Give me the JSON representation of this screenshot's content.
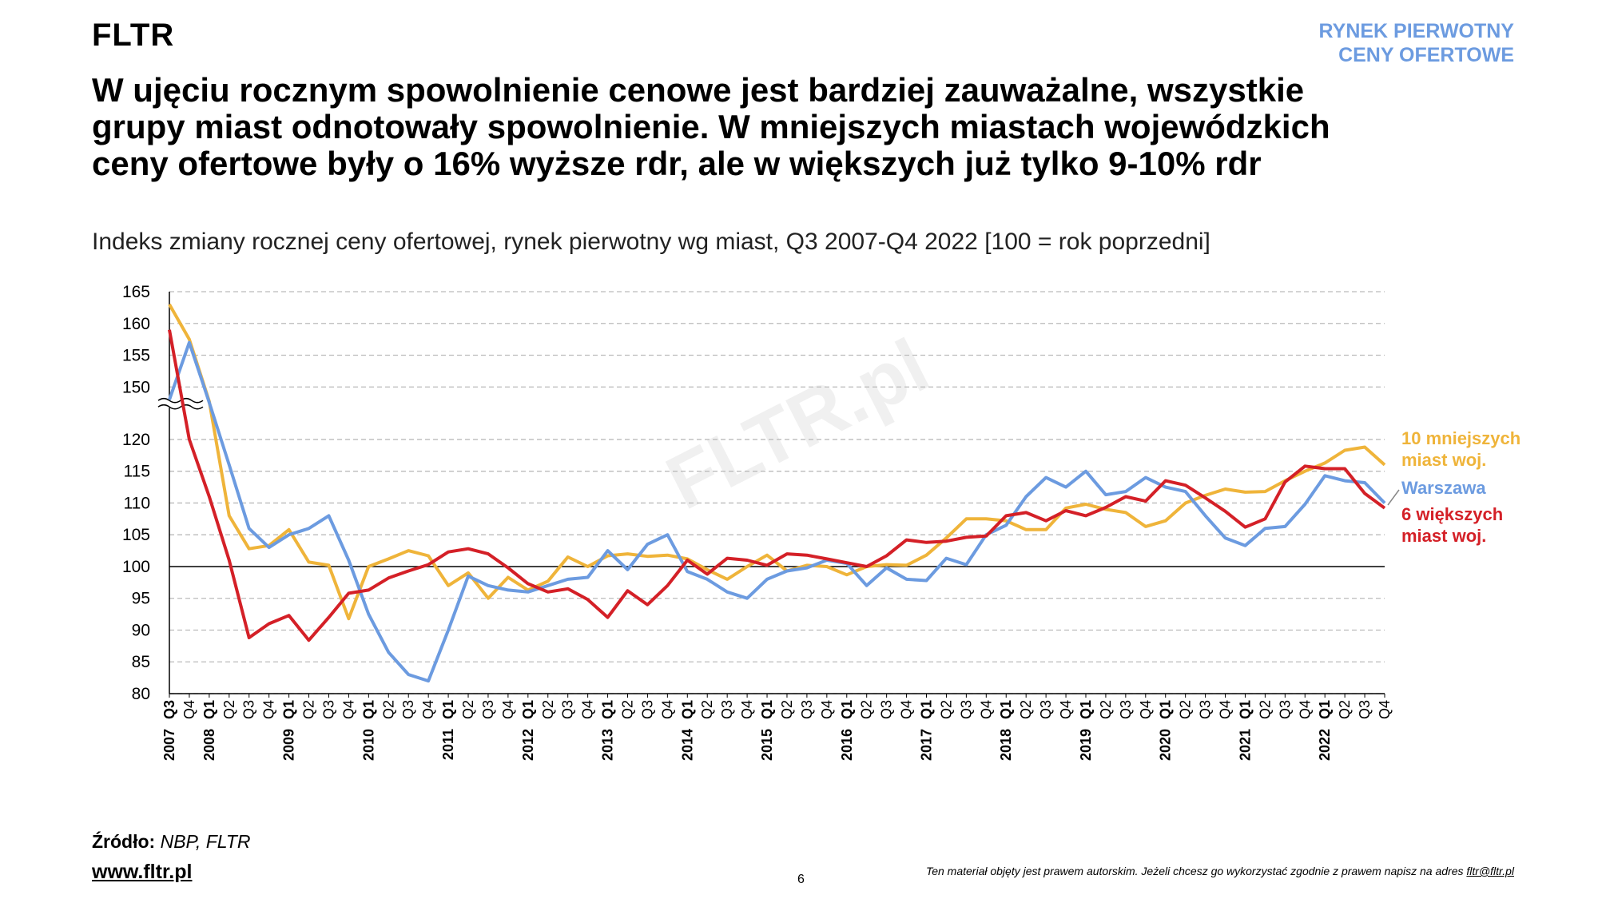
{
  "brand": "FLTR",
  "tag": "RYNEK PIERWOTNY\nCENY OFERTOWE",
  "source": {
    "label": "Źródło:",
    "text": "NBP, FLTR"
  },
  "website": "www.fltr.pl",
  "page_number": "6",
  "footer": {
    "note": "Ten materiał objęty jest prawem autorskim. Jeżeli chcesz go wykorzystać zgodnie z prawem napisz na adres ",
    "email": "fltr@fltr.pl"
  },
  "watermark": "FLTR.pl",
  "chart_data": {
    "type": "line",
    "title": "W ujęciu rocznym spowolnienie cenowe jest bardziej zauważalne, wszystkie\ngrupy miast odnotowały spowolnienie. W mniejszych miastach wojewódzkich\nceny ofertowe były o 16% wyższe rdr, ale w większych już tylko 9-10% rdr",
    "subtitle": "Indeks zmiany rocznej ceny ofertowej, rynek pierwotny wg miast, Q3 2007-Q4 2022 [100 = rok poprzedni]",
    "categories": [
      "Q3",
      "Q4",
      "Q1",
      "Q2",
      "Q3",
      "Q4",
      "Q1",
      "Q2",
      "Q3",
      "Q4",
      "Q1",
      "Q2",
      "Q3",
      "Q4",
      "Q1",
      "Q2",
      "Q3",
      "Q4",
      "Q1",
      "Q2",
      "Q3",
      "Q4",
      "Q1",
      "Q2",
      "Q3",
      "Q4",
      "Q1",
      "Q2",
      "Q3",
      "Q4",
      "Q1",
      "Q2",
      "Q3",
      "Q4",
      "Q1",
      "Q2",
      "Q3",
      "Q4",
      "Q1",
      "Q2",
      "Q3",
      "Q4",
      "Q1",
      "Q2",
      "Q3",
      "Q4",
      "Q1",
      "Q2",
      "Q3",
      "Q4",
      "Q1",
      "Q2",
      "Q3",
      "Q4",
      "Q1",
      "Q2",
      "Q3",
      "Q4",
      "Q1",
      "Q2",
      "Q3",
      "Q4"
    ],
    "years": [
      "2007",
      null,
      "2008",
      null,
      null,
      null,
      "2009",
      null,
      null,
      null,
      "2010",
      null,
      null,
      null,
      "2011",
      null,
      null,
      null,
      "2012",
      null,
      null,
      null,
      "2013",
      null,
      null,
      null,
      "2014",
      null,
      null,
      null,
      "2015",
      null,
      null,
      null,
      "2016",
      null,
      null,
      null,
      "2017",
      null,
      null,
      null,
      "2018",
      null,
      null,
      null,
      "2019",
      null,
      null,
      null,
      "2020",
      null,
      null,
      null,
      "2021",
      null,
      null,
      null,
      "2022",
      null,
      null,
      null
    ],
    "series": [
      {
        "name": "10 mniejszych\nmiast woj.",
        "color": "#efb43a",
        "values": [
          163,
          157.5,
          143,
          108,
          102.8,
          103.3,
          105.8,
          100.7,
          100.2,
          91.8,
          100,
          101.2,
          102.5,
          101.7,
          97,
          99,
          95,
          98.3,
          96.3,
          97.7,
          101.5,
          100,
          101.7,
          102,
          101.6,
          101.8,
          101.2,
          99.5,
          98,
          100,
          101.8,
          99.3,
          100.2,
          100,
          98.7,
          100,
          100.3,
          100.2,
          101.8,
          104.5,
          107.5,
          107.5,
          107.2,
          105.8,
          105.8,
          109.2,
          109.8,
          109,
          108.5,
          106.3,
          107.2,
          110,
          111.2,
          112.2,
          111.7,
          111.8,
          113.5,
          115,
          116.3,
          118.3,
          118.8,
          116
        ]
      },
      {
        "name": "Warszawa",
        "color": "#6c9be0",
        "values": [
          148,
          157,
          140,
          116,
          106,
          103,
          105,
          106,
          108,
          101,
          92.5,
          86.5,
          83,
          82,
          90,
          98.5,
          97,
          96.3,
          96,
          97,
          98,
          98.3,
          102.5,
          99.5,
          103.5,
          105,
          99.2,
          98,
          96,
          95,
          98,
          99.3,
          99.8,
          101,
          100.5,
          97,
          99.8,
          98,
          97.8,
          101.3,
          100.3,
          105,
          106.5,
          111,
          114,
          112.5,
          115,
          111.3,
          111.8,
          114,
          112.5,
          111.8,
          108,
          104.5,
          103.3,
          106,
          106.3,
          109.8,
          114.3,
          113.5,
          113.2,
          110
        ]
      },
      {
        "name": "6 większych\nmiast woj.",
        "color": "#d42027",
        "values": [
          159,
          120,
          111,
          101,
          88.8,
          91,
          92.3,
          88.4,
          92,
          95.8,
          96.3,
          98.2,
          99.3,
          100.3,
          102.3,
          102.8,
          102,
          99.8,
          97.3,
          96,
          96.5,
          94.8,
          92,
          96.2,
          94,
          97,
          101,
          98.8,
          101.3,
          101,
          100.2,
          102,
          101.8,
          101.2,
          100.6,
          100,
          101.7,
          104.2,
          103.8,
          104,
          104.6,
          104.8,
          108,
          108.5,
          107.2,
          108.8,
          108,
          109.3,
          111,
          110.3,
          113.5,
          112.8,
          110.8,
          108.7,
          106.2,
          107.5,
          113.3,
          115.8,
          115.4,
          115.4,
          111.5,
          109.2
        ]
      }
    ],
    "ylim": [
      80,
      165
    ],
    "y_break": [
      125,
      148
    ],
    "yticks": [
      80,
      85,
      90,
      95,
      100,
      105,
      110,
      115,
      120,
      150,
      155,
      160,
      165
    ],
    "baseline": 100,
    "grid": true
  }
}
